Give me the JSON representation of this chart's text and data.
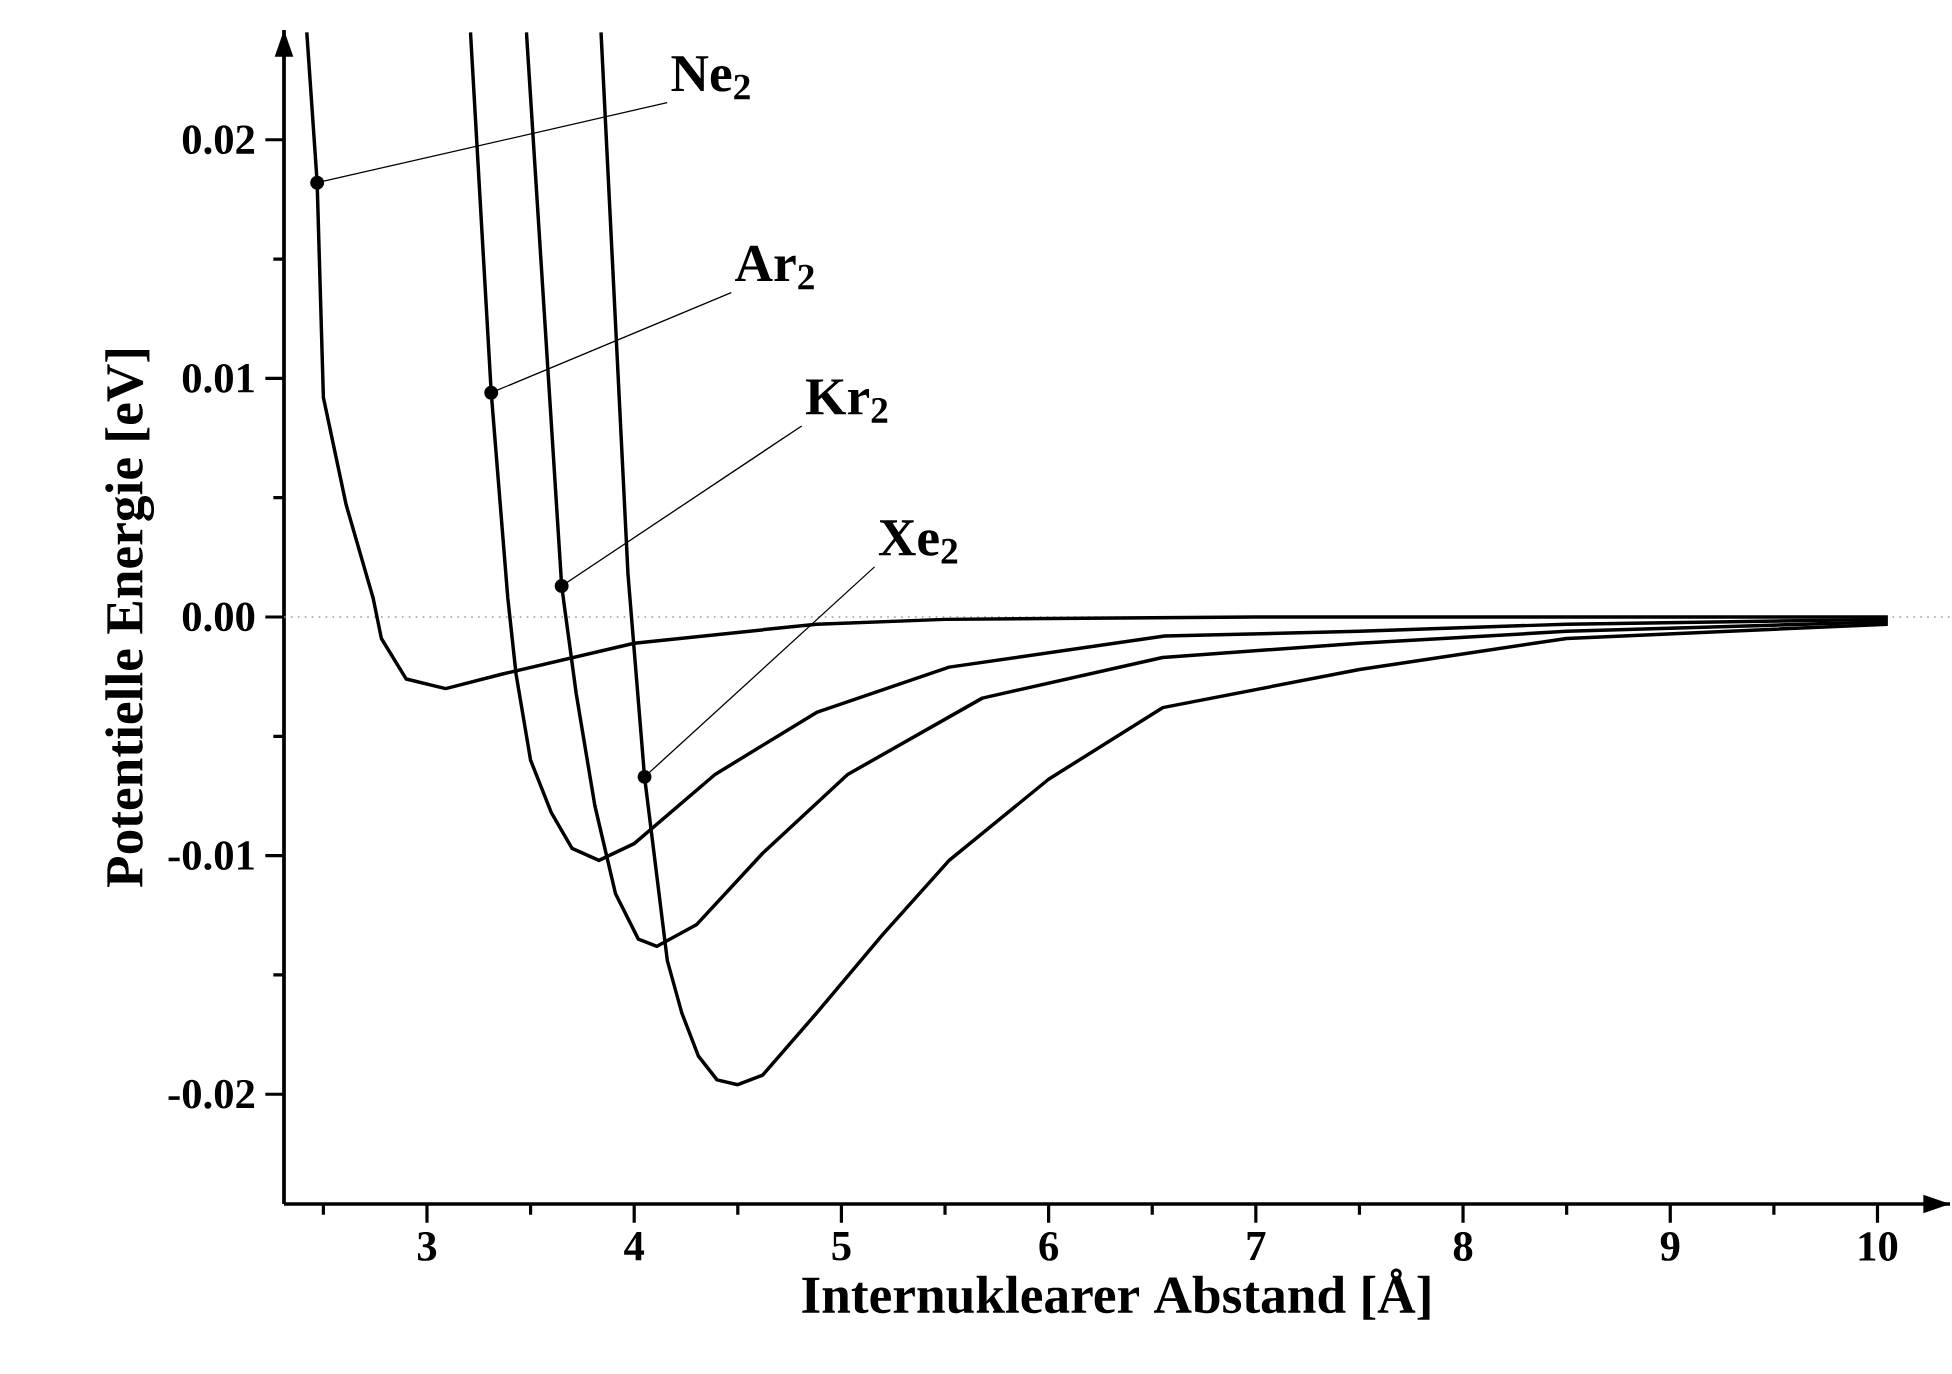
{
  "chart_data": {
    "type": "line",
    "xlabel": "Internuklearer Abstand [Å]",
    "ylabel": "Potentielle Energie [eV]",
    "xlim": [
      2.31,
      10.35
    ],
    "ylim": [
      -0.0246,
      0.0246
    ],
    "xticks": [
      {
        "value": 2.5,
        "label": null
      },
      3,
      {
        "value": 3.5,
        "label": null
      },
      4,
      {
        "value": 4.5,
        "label": null
      },
      5,
      {
        "value": 5.5,
        "label": null
      },
      6,
      {
        "value": 6.5,
        "label": null
      },
      7,
      {
        "value": 7.5,
        "label": null
      },
      8,
      {
        "value": 8.5,
        "label": null
      },
      9,
      {
        "value": 9.5,
        "label": null
      },
      10
    ],
    "yticks": [
      {
        "value": -0.02,
        "label": "-0.02"
      },
      {
        "value": -0.015,
        "label": null
      },
      {
        "value": -0.01,
        "label": "-0.01"
      },
      {
        "value": -0.005,
        "label": null
      },
      {
        "value": 0,
        "label": "0.00"
      },
      {
        "value": 0.005,
        "label": null
      },
      {
        "value": 0.01,
        "label": "0.01"
      },
      {
        "value": 0.015,
        "label": null
      },
      {
        "value": 0.02,
        "label": "0.02"
      }
    ],
    "marker": "none",
    "line_style": "solid",
    "ref_lines": [
      {
        "axis": "y",
        "value": 0,
        "color": "#999999",
        "line_style": "dotted"
      }
    ],
    "series": [
      {
        "color": "#000000",
        "x": [
          2.42,
          2.47,
          2.5,
          2.61,
          2.74,
          2.78,
          2.9,
          3.09,
          3.36,
          4.0,
          4.88,
          5.5,
          7.0,
          10.05
        ],
        "values": [
          0.0245,
          0.0182,
          0.0092,
          0.0047,
          0.0008,
          -0.0009,
          -0.0026,
          -0.003,
          -0.0024,
          -0.0011,
          -0.0003,
          -0.0001,
          0,
          0
        ]
      },
      {
        "color": "#000000",
        "x": [
          3.21,
          3.31,
          3.39,
          3.43,
          3.5,
          3.6,
          3.7,
          3.83,
          4.0,
          4.39,
          4.88,
          5.52,
          6.56,
          7.5,
          8.5,
          10.05
        ],
        "values": [
          0.0245,
          0.0094,
          0.0008,
          -0.0024,
          -0.006,
          -0.0082,
          -0.0097,
          -0.0102,
          -0.0095,
          -0.0066,
          -0.004,
          -0.0021,
          -0.0008,
          -0.0006,
          -0.0003,
          -0.0001
        ]
      },
      {
        "color": "#000000",
        "x": [
          3.48,
          3.65,
          3.72,
          3.81,
          3.91,
          4.02,
          4.11,
          4.3,
          4.62,
          5.03,
          5.68,
          6.55,
          7.5,
          8.5,
          10.05
        ],
        "values": [
          0.0245,
          0.0013,
          -0.0032,
          -0.0079,
          -0.0116,
          -0.0135,
          -0.0138,
          -0.0129,
          -0.0099,
          -0.0066,
          -0.0034,
          -0.0017,
          -0.0011,
          -0.0006,
          -0.0002
        ]
      },
      {
        "color": "#000000",
        "x": [
          3.84,
          3.97,
          4.05,
          4.16,
          4.23,
          4.31,
          4.4,
          4.5,
          4.62,
          4.88,
          5.2,
          5.52,
          6.0,
          6.55,
          7.5,
          8.5,
          10.05
        ],
        "values": [
          0.0245,
          0.0018,
          -0.0067,
          -0.0144,
          -0.0166,
          -0.0184,
          -0.0194,
          -0.0196,
          -0.0192,
          -0.0166,
          -0.0133,
          -0.0102,
          -0.0068,
          -0.0038,
          -0.0022,
          -0.0009,
          -0.0003
        ]
      }
    ],
    "annotations": [
      {
        "text": "Ne$_{2}$",
        "x": 2.47,
        "y": 0.0182
      },
      {
        "text": "Ar$_{2}$",
        "x": 3.31,
        "y": 0.0094
      },
      {
        "text": "Kr$_{2}$",
        "x": 3.65,
        "y": 0.0013
      },
      {
        "text": "Xe$_{2}$",
        "x": 4.05,
        "y": -0.0067
      }
    ]
  }
}
